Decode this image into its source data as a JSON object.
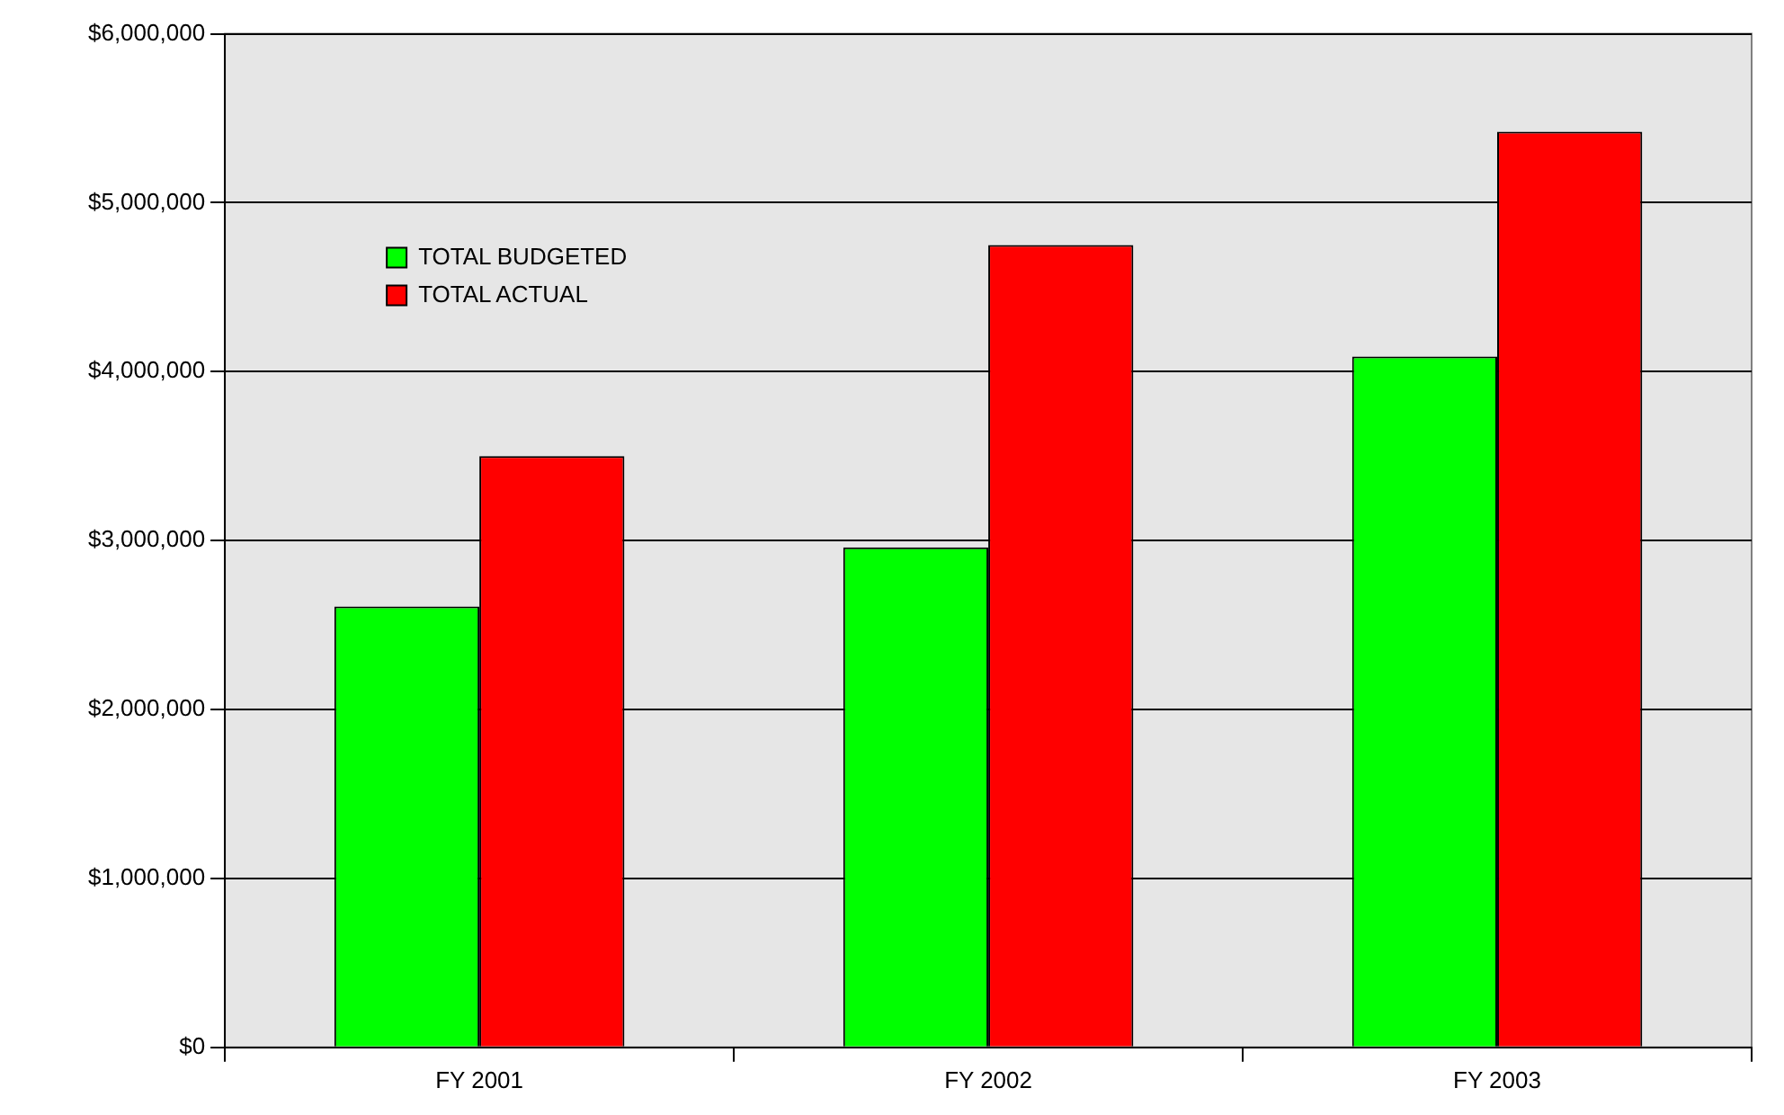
{
  "chart_data": {
    "type": "bar",
    "categories": [
      "FY 2001",
      "FY 2002",
      "FY 2003"
    ],
    "series": [
      {
        "name": "TOTAL BUDGETED",
        "color": "#00ff00",
        "values": [
          2610000,
          2960000,
          4090000
        ]
      },
      {
        "name": "TOTAL ACTUAL",
        "color": "#ff0000",
        "values": [
          3500000,
          4750000,
          5420000
        ]
      }
    ],
    "ylim": [
      0,
      6000000
    ],
    "yticks": [
      {
        "value": 0,
        "label": "$0"
      },
      {
        "value": 1000000,
        "label": "$1,000,000"
      },
      {
        "value": 2000000,
        "label": "$2,000,000"
      },
      {
        "value": 3000000,
        "label": "$3,000,000"
      },
      {
        "value": 4000000,
        "label": "$4,000,000"
      },
      {
        "value": 5000000,
        "label": "$5,000,000"
      },
      {
        "value": 6000000,
        "label": "$6,000,000"
      }
    ],
    "grid": "y",
    "legend": "top left"
  }
}
